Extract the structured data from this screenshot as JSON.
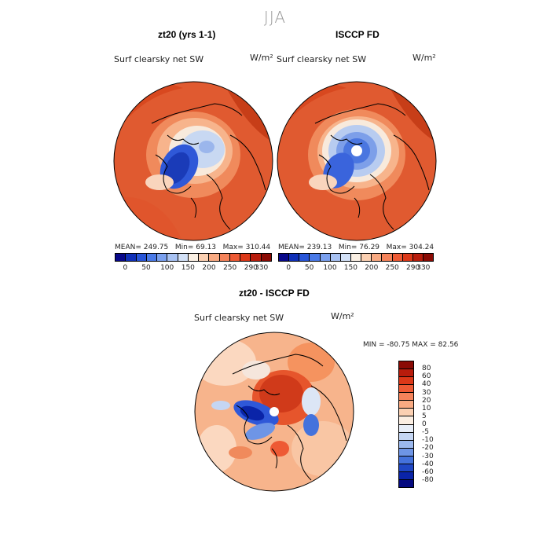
{
  "figure": {
    "season": "JJA"
  },
  "panels": {
    "model": {
      "title": "zt20 (yrs 1-1)",
      "field": "Surf clearsky net SW",
      "units": "W/m²",
      "stats": {
        "mean_label": "MEAN=",
        "mean": "249.75",
        "min_label": "Min=",
        "min": "69.13",
        "max_label": "Max=",
        "max": "310.44"
      }
    },
    "obs": {
      "title": "ISCCP FD",
      "field": "Surf clearsky net SW",
      "units": "W/m²",
      "stats": {
        "mean_label": "MEAN=",
        "mean": "239.13",
        "min_label": "Min=",
        "min": "76.29",
        "max_label": "Max=",
        "max": "304.24"
      }
    },
    "diff": {
      "title": "zt20 - ISCCP FD",
      "field": "Surf clearsky net SW",
      "units": "W/m²",
      "stats_text": "MIN = -80.75  MAX =  82.56"
    }
  },
  "colorbar_abs": {
    "ticks": [
      "0",
      "50",
      "100",
      "150",
      "200",
      "250",
      "290",
      "330"
    ],
    "colors": [
      "#08088a",
      "#1030b8",
      "#2855d8",
      "#4a7ae8",
      "#7aa0ef",
      "#a8c2f3",
      "#d3e1f7",
      "#fbf0e4",
      "#fbd0b2",
      "#f9aa82",
      "#f5835a",
      "#ee5a34",
      "#dc3818",
      "#b81c0c",
      "#8a0a04"
    ]
  },
  "colorbar_diff": {
    "labels": [
      "80",
      "60",
      "40",
      "30",
      "20",
      "10",
      "5",
      "0",
      "-5",
      "-10",
      "-20",
      "-30",
      "-40",
      "-60",
      "-80"
    ],
    "colors": [
      "#8a0a04",
      "#b81c0c",
      "#dc3818",
      "#ee5a34",
      "#f5835a",
      "#f9aa82",
      "#fbd0b2",
      "#fbeee2",
      "#e8eef8",
      "#c5d6f3",
      "#9bb8ee",
      "#6e95e6",
      "#4472dc",
      "#1f47c4",
      "#0a24a8",
      "#050a80"
    ]
  }
}
